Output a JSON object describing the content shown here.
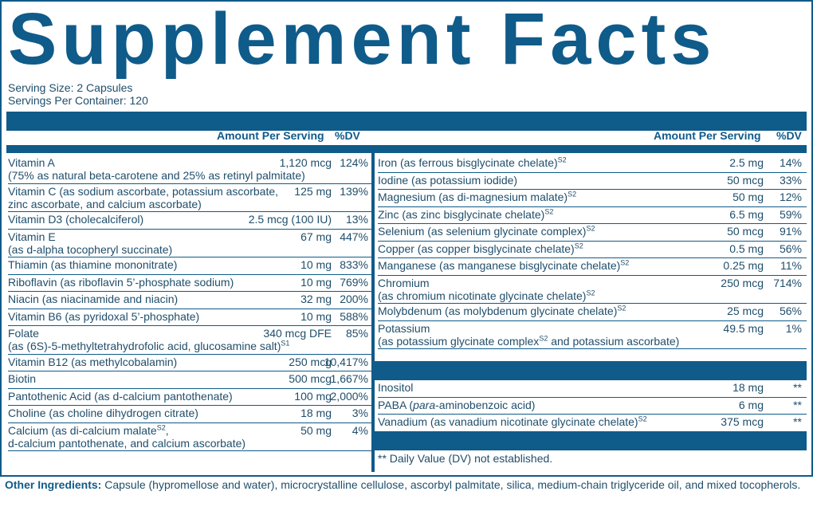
{
  "title": "Supplement Facts",
  "serving_size": "Serving Size: 2 Capsules",
  "servings_per_container": "Servings Per Container: 120",
  "header": {
    "amount": "Amount Per Serving",
    "dv": "%DV"
  },
  "left": [
    {
      "name": "Vitamin A",
      "sub": "(75% as natural beta-carotene and 25% as retinyl palmitate)",
      "amount": "1,120 mcg",
      "dv": "124%"
    },
    {
      "name": "Vitamin C (as sodium ascorbate, potassium ascorbate,",
      "sub": "zinc ascorbate, and calcium ascorbate)",
      "amount": "125 mg",
      "dv": "139%"
    },
    {
      "name": "Vitamin D3 (cholecalciferol)",
      "amount": "2.5 mcg (100 IU)",
      "dv": "13%"
    },
    {
      "name": "Vitamin E",
      "sub": "(as d-alpha tocopheryl succinate)",
      "amount": "67 mg",
      "dv": "447%"
    },
    {
      "name": "Thiamin (as thiamine mononitrate)",
      "amount": "10 mg",
      "dv": "833%"
    },
    {
      "name": "Riboflavin (as riboflavin 5’-phosphate sodium)",
      "amount": "10 mg",
      "dv": "769%"
    },
    {
      "name": "Niacin (as niacinamide and niacin)",
      "amount": "32 mg",
      "dv": "200%"
    },
    {
      "name": "Vitamin B6 (as pyridoxal 5’-phosphate)",
      "amount": "10 mg",
      "dv": "588%"
    },
    {
      "name": "Folate",
      "sub": "(as (6S)-5-methyltetrahydrofolic acid, glucosamine salt)",
      "sub_sup": "S1",
      "amount": "340 mcg DFE",
      "dv": "85%"
    },
    {
      "name": "Vitamin B12 (as methylcobalamin)",
      "amount": "250 mcg",
      "dv": "10,417%"
    },
    {
      "name": "Biotin",
      "amount": "500 mcg",
      "dv": "1,667%"
    },
    {
      "name": "Pantothenic Acid (as d-calcium pantothenate)",
      "amount": "100 mg",
      "dv": "2,000%"
    },
    {
      "name": "Choline (as choline dihydrogen citrate)",
      "amount": "18 mg",
      "dv": "3%"
    },
    {
      "name": "Calcium (as di-calcium malate",
      "name_sup": "S2",
      "name_tail": ",",
      "sub": "d-calcium pantothenate, and calcium ascorbate)",
      "amount": "50 mg",
      "dv": "4%"
    }
  ],
  "right": [
    {
      "name": "Iron (as ferrous bisglycinate chelate)",
      "name_sup": "S2",
      "amount": "2.5 mg",
      "dv": "14%"
    },
    {
      "name": "Iodine (as potassium iodide)",
      "amount": "50 mcg",
      "dv": "33%"
    },
    {
      "name": "Magnesium (as di-magnesium malate)",
      "name_sup": "S2",
      "amount": "50 mg",
      "dv": "12%"
    },
    {
      "name": "Zinc (as zinc bisglycinate chelate)",
      "name_sup": "S2",
      "amount": "6.5 mg",
      "dv": "59%"
    },
    {
      "name": "Selenium (as selenium glycinate complex)",
      "name_sup": "S2",
      "amount": "50 mcg",
      "dv": "91%"
    },
    {
      "name": "Copper (as copper bisglycinate chelate)",
      "name_sup": "S2",
      "amount": "0.5 mg",
      "dv": "56%"
    },
    {
      "name": "Manganese (as manganese bisglycinate chelate)",
      "name_sup": "S2",
      "amount": "0.25 mg",
      "dv": "11%"
    },
    {
      "name": "Chromium",
      "sub": "(as chromium nicotinate glycinate chelate)",
      "sub_sup": "S2",
      "amount": "250 mcg",
      "dv": "714%"
    },
    {
      "name": "Molybdenum (as molybdenum glycinate chelate)",
      "name_sup": "S2",
      "amount": "25 mcg",
      "dv": "56%"
    },
    {
      "name": "Potassium",
      "sub": "(as potassium glycinate complex",
      "sub_sup": "S2",
      "sub_tail": " and potassium ascorbate)",
      "amount": "49.5 mg",
      "dv": "1%"
    }
  ],
  "right2": [
    {
      "name": "Inositol",
      "amount": "18 mg",
      "dv": "**"
    },
    {
      "name_pre": "PABA (",
      "name_em": "para",
      "name": "-aminobenzoic acid)",
      "amount": "6 mg",
      "dv": "**"
    },
    {
      "name": "Vanadium (as vanadium nicotinate glycinate chelate)",
      "name_sup": "S2",
      "amount": "375 mcg",
      "dv": "**"
    }
  ],
  "footnote": "** Daily Value (DV) not established.",
  "other_label": "Other Ingredients:",
  "other_text": " Capsule (hypromellose and water), microcrystalline cellulose, ascorbyl palmitate, silica, medium-chain triglyceride oil, and mixed tocopherols."
}
